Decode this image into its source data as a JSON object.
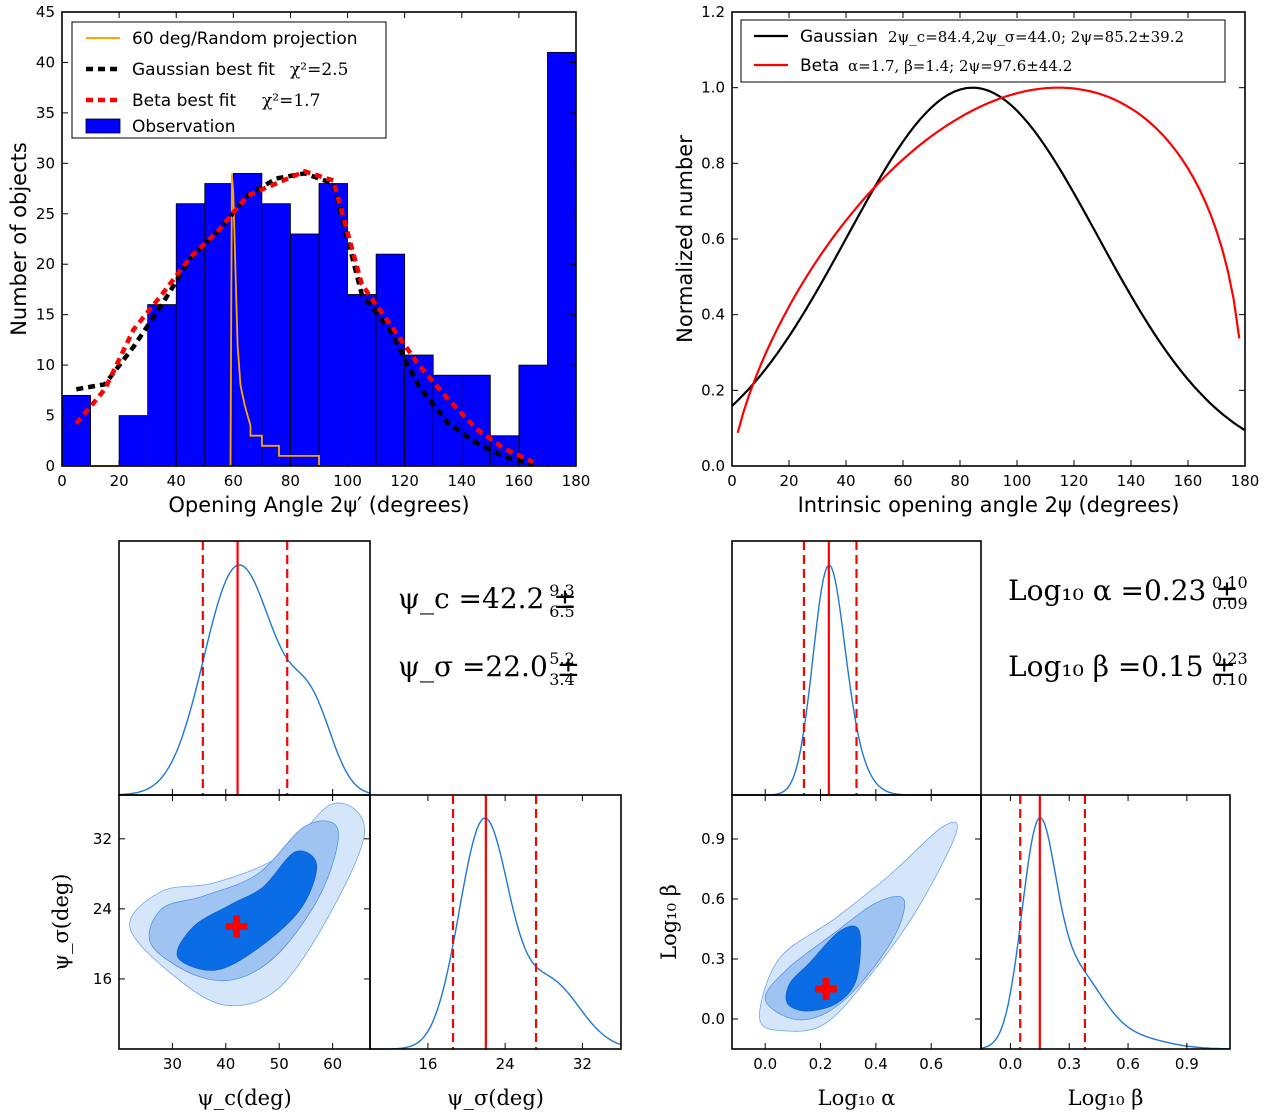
{
  "chart_data": [
    {
      "type": "bar",
      "panel": "histogram",
      "xlabel": "Opening Angle 2ψ′ (degrees)",
      "ylabel": "Number of objects",
      "xlim": [
        0,
        180
      ],
      "ylim": [
        0,
        45
      ],
      "xticks": [
        "0",
        "20",
        "40",
        "60",
        "80",
        "100",
        "120",
        "140",
        "160",
        "180"
      ],
      "yticks": [
        "0",
        "5",
        "10",
        "15",
        "20",
        "25",
        "30",
        "35",
        "40",
        "45"
      ],
      "bin_edges": [
        0,
        10,
        20,
        30,
        40,
        50,
        60,
        70,
        80,
        90,
        100,
        110,
        120,
        130,
        140,
        150,
        160,
        170,
        180
      ],
      "bins": [
        {
          "x0": 0,
          "x1": 10,
          "v": 7
        },
        {
          "x0": 20,
          "x1": 30,
          "v": 5
        },
        {
          "x0": 30,
          "x1": 40,
          "v": 16
        },
        {
          "x0": 40,
          "x1": 50,
          "v": 26
        },
        {
          "x0": 50,
          "x1": 60,
          "v": 28
        },
        {
          "x0": 60,
          "x1": 70,
          "v": 29
        },
        {
          "x0": 70,
          "x1": 80,
          "v": 26
        },
        {
          "x0": 80,
          "x1": 90,
          "v": 23
        },
        {
          "x0": 90,
          "x1": 100,
          "v": 28
        },
        {
          "x0": 100,
          "x1": 110,
          "v": 17
        },
        {
          "x0": 110,
          "x1": 120,
          "v": 21
        },
        {
          "x0": 120,
          "x1": 130,
          "v": 11
        },
        {
          "x0": 130,
          "x1": 140,
          "v": 9
        },
        {
          "x0": 140,
          "x1": 150,
          "v": 9
        },
        {
          "x0": 150,
          "x1": 160,
          "v": 3
        },
        {
          "x0": 160,
          "x1": 170,
          "v": 10
        },
        {
          "x0": 170,
          "x1": 180,
          "v": 41
        }
      ],
      "series": [
        {
          "name": "60 deg/Random projection",
          "color": "#ffa500",
          "style": "solid",
          "points": [
            [
              0,
              0
            ],
            [
              59,
              0
            ],
            [
              59.5,
              29
            ],
            [
              60,
              27
            ],
            [
              60.7,
              20
            ],
            [
              61.5,
              12
            ],
            [
              62.5,
              8
            ],
            [
              64,
              6
            ],
            [
              65,
              5
            ],
            [
              66,
              4
            ],
            [
              66,
              3
            ],
            [
              70,
              3
            ],
            [
              70,
              2
            ],
            [
              76,
              2
            ],
            [
              76,
              1
            ],
            [
              90,
              1
            ],
            [
              90,
              0
            ],
            [
              180,
              0
            ]
          ]
        },
        {
          "name": "Gaussian best fit",
          "color": "#000000",
          "style": "dashed",
          "points": [
            [
              5,
              7.6
            ],
            [
              15,
              8.1
            ],
            [
              25,
              11.8
            ],
            [
              35,
              16.0
            ],
            [
              45,
              20.6
            ],
            [
              55,
              23.4
            ],
            [
              65,
              26.8
            ],
            [
              75,
              28.5
            ],
            [
              85,
              29.0
            ],
            [
              95,
              28.0
            ],
            [
              105,
              17.0
            ],
            [
              115,
              13.4
            ],
            [
              125,
              7.9
            ],
            [
              135,
              4.3
            ],
            [
              145,
              2.3
            ],
            [
              155,
              0.9
            ],
            [
              165,
              0.2
            ]
          ]
        },
        {
          "name": "Beta best fit",
          "color": "#ff0000",
          "style": "dashed",
          "points": [
            [
              5,
              4.2
            ],
            [
              15,
              7.6
            ],
            [
              25,
              13.5
            ],
            [
              35,
              17.0
            ],
            [
              45,
              20.7
            ],
            [
              55,
              23.4
            ],
            [
              65,
              26.8
            ],
            [
              75,
              28.0
            ],
            [
              85,
              29.2
            ],
            [
              95,
              28.3
            ],
            [
              105,
              18.0
            ],
            [
              115,
              14.0
            ],
            [
              125,
              10.0
            ],
            [
              135,
              6.7
            ],
            [
              145,
              3.7
            ],
            [
              155,
              1.7
            ],
            [
              165,
              0.4
            ]
          ]
        }
      ],
      "legend": [
        {
          "label": "60 deg/Random projection",
          "kind": "line",
          "color": "#ffa500"
        },
        {
          "label": "Gaussian best fit",
          "kind": "dash",
          "color": "#000000",
          "note": "χ²=2.5"
        },
        {
          "label": "Beta best fit",
          "kind": "dash",
          "color": "#ff0000",
          "note": "χ²=1.7"
        },
        {
          "label": "Observation",
          "kind": "patch",
          "color": "#0000ff"
        }
      ],
      "bar_color": "#0000ff",
      "legend_loc": "top-left"
    },
    {
      "type": "line",
      "panel": "intrinsic",
      "xlabel": "Intrinsic opening angle 2ψ (degrees)",
      "ylabel": "Normalized number",
      "xlim": [
        0,
        180
      ],
      "ylim": [
        0.0,
        1.2
      ],
      "xticks": [
        "0",
        "20",
        "40",
        "60",
        "80",
        "100",
        "120",
        "140",
        "160",
        "180"
      ],
      "yticks": [
        "0.0",
        "0.2",
        "0.4",
        "0.6",
        "0.8",
        "1.0",
        "1.2"
      ],
      "series": [
        {
          "name": "Gaussian",
          "color": "#000000",
          "model": "gauss",
          "mu": 84.4,
          "sigma": 44.0
        },
        {
          "name": "Beta",
          "color": "#ff0000",
          "model": "beta",
          "alpha": 1.7,
          "beta": 1.4
        }
      ],
      "legend": [
        {
          "label": "Gaussian",
          "math": "2ψ_c=84.4,2ψ_σ=44.0; 2ψ=85.2±39.2",
          "color": "#000000"
        },
        {
          "label": "Beta",
          "math": "α=1.7, β=1.4; 2ψ=97.6±44.2",
          "color": "#ff0000"
        }
      ],
      "legend_loc": "top-left"
    },
    {
      "type": "line",
      "panel": "corner-gauss-psi-c",
      "median": 42.2,
      "lo": 35.7,
      "hi": 51.5,
      "xlim": [
        20,
        67
      ],
      "curve_color": "#1f77d4",
      "marker_color": "#ff0000",
      "annotations": [
        {
          "text": "ψ_c =42.2 ±",
          "sup": "9.3",
          "sub": "6.5"
        },
        {
          "text": "ψ_σ =22.0 ±",
          "sup": "5.2",
          "sub": "3.4"
        }
      ]
    },
    {
      "type": "contour",
      "panel": "corner-gauss-2d",
      "xlabel": "ψ_c(deg)",
      "ylabel": "ψ_σ(deg)",
      "xlim": [
        20,
        67
      ],
      "ylim": [
        8,
        37
      ],
      "xticks": [
        "30",
        "40",
        "50",
        "60"
      ],
      "yticks": [
        "16",
        "24",
        "32"
      ],
      "best": [
        42.0,
        22.0
      ],
      "levels": [
        "#d6e6fa",
        "#a0c4f2",
        "#0a6de6"
      ]
    },
    {
      "type": "line",
      "panel": "corner-gauss-psi-sigma",
      "xlabel": "ψ_σ(deg)",
      "xlim": [
        10,
        36
      ],
      "xticks": [
        "16",
        "24",
        "32"
      ],
      "median": 22.0,
      "lo": 18.6,
      "hi": 27.2
    },
    {
      "type": "line",
      "panel": "corner-beta-log-alpha",
      "median": 0.23,
      "lo": 0.14,
      "hi": 0.33,
      "xlim": [
        -0.12,
        0.78
      ],
      "annotations": [
        {
          "text": "Log₁₀ α =0.23 ±",
          "sup": "0.10",
          "sub": "0.09"
        },
        {
          "text": "Log₁₀ β =0.15 ±",
          "sup": "0.23",
          "sub": "0.10"
        }
      ]
    },
    {
      "type": "contour",
      "panel": "corner-beta-2d",
      "xlabel": "Log₁₀ α",
      "ylabel": "Log₁₀ β",
      "xlim": [
        -0.12,
        0.78
      ],
      "ylim": [
        -0.15,
        1.12
      ],
      "xticks": [
        "0.0",
        "0.2",
        "0.4",
        "0.6"
      ],
      "yticks": [
        "0.0",
        "0.3",
        "0.6",
        "0.9"
      ],
      "best": [
        0.22,
        0.15
      ],
      "levels": [
        "#d6e6fa",
        "#a0c4f2",
        "#0a6de6"
      ]
    },
    {
      "type": "line",
      "panel": "corner-beta-log-beta",
      "xlabel": "Log₁₀ β",
      "xlim": [
        -0.15,
        1.12
      ],
      "xticks": [
        "0.0",
        "0.3",
        "0.6",
        "0.9"
      ],
      "median": 0.15,
      "lo": 0.05,
      "hi": 0.38
    }
  ]
}
